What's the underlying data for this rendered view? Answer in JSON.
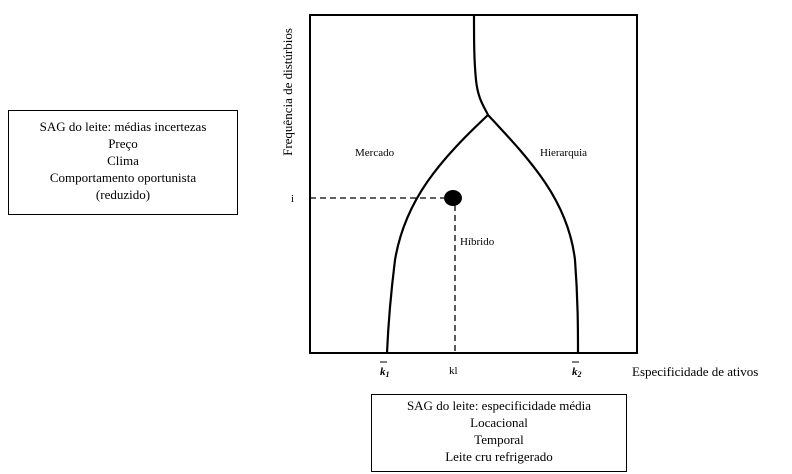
{
  "diagram": {
    "y_axis_label": "Frequência de distúrbios",
    "x_axis_label": "Especificidade de ativos",
    "regions": {
      "market": "Mercado",
      "hierarchy": "Hierarquia",
      "hybrid": "Híbrido"
    },
    "y_marker": "i",
    "x_markers": {
      "k1": "k",
      "k1_sub": "1",
      "kl": "kl",
      "k2": "k",
      "k2_sub": "2"
    }
  },
  "left_box": {
    "lines": [
      "SAG do leite: médias incertezas",
      "Preço",
      "Clima",
      "Comportamento oportunista",
      "(reduzido)"
    ]
  },
  "bottom_box": {
    "lines": [
      "SAG do leite: especificidade média",
      "Locacional",
      "Temporal",
      "Leite cru refrigerado"
    ]
  }
}
